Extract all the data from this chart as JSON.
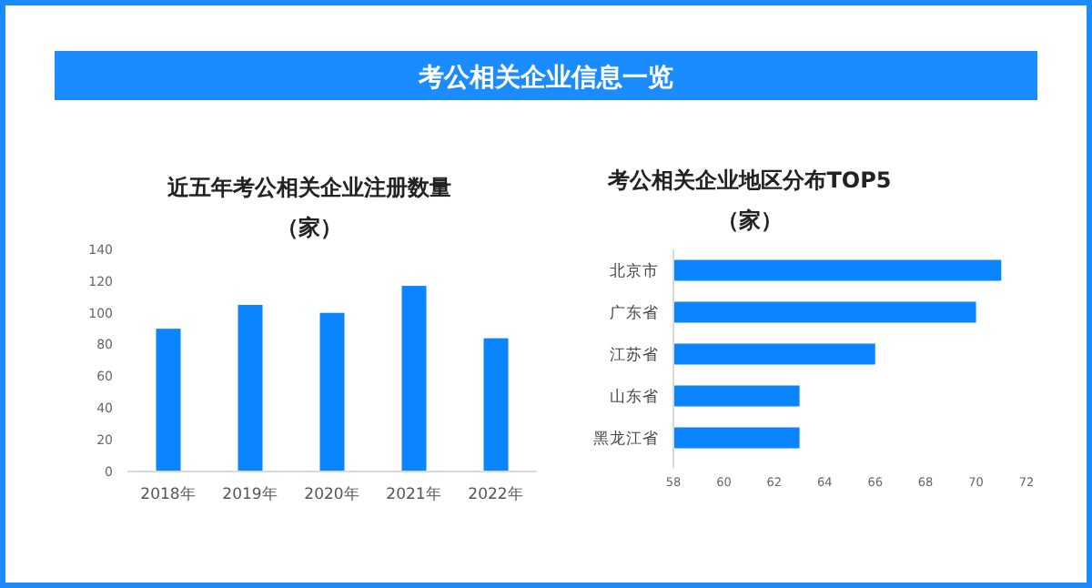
{
  "chart_data": [
    {
      "type": "other",
      "title": "考公相关企业信息一览"
    },
    {
      "type": "bar",
      "title": "近五年考公相关企业注册数量",
      "subtitle": "（家）",
      "categories": [
        "2018年",
        "2019年",
        "2020年",
        "2021年",
        "2022年"
      ],
      "values": [
        90,
        105,
        100,
        117,
        84
      ],
      "color": "#0a84ff",
      "ylim": [
        0,
        140
      ],
      "yticks": [
        0,
        20,
        40,
        60,
        80,
        100,
        120,
        140
      ],
      "grid": false
    },
    {
      "type": "bar",
      "orientation": "horizontal",
      "title": "考公相关企业地区分布TOP5",
      "subtitle": "（家）",
      "categories": [
        "北京市",
        "广东省",
        "江苏省",
        "山东省",
        "黑龙江省"
      ],
      "values": [
        71,
        70,
        66,
        63,
        63
      ],
      "color": "#0a84ff",
      "xlim": [
        58,
        72
      ],
      "xticks": [
        58,
        60,
        62,
        64,
        66,
        68,
        70,
        72
      ],
      "grid": false
    }
  ]
}
